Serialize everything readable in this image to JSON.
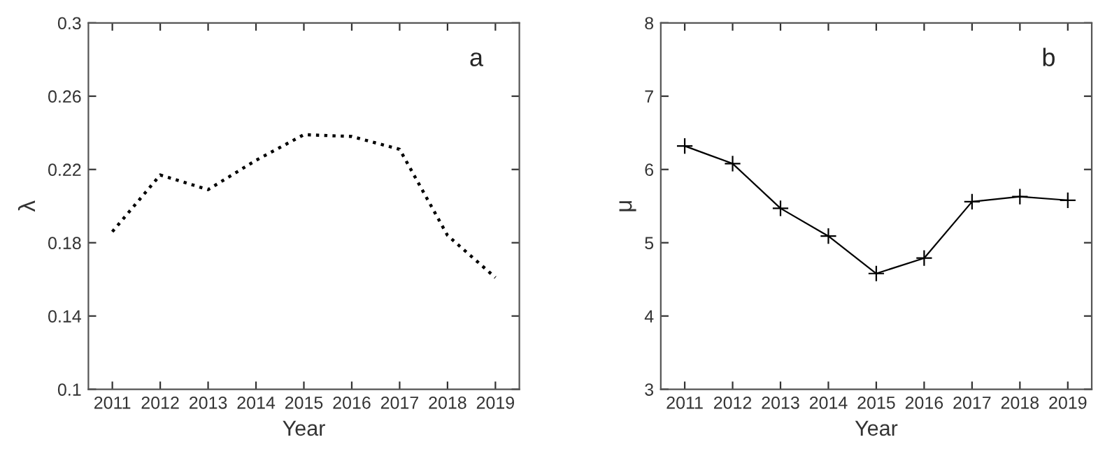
{
  "chart_data": [
    {
      "type": "line",
      "xlabel": "Year",
      "ylabel": "λ",
      "categories": [
        "2011",
        "2012",
        "2013",
        "2014",
        "2015",
        "2016",
        "2017",
        "2018",
        "2019"
      ],
      "series": [
        {
          "color": "#000000",
          "values": [
            0.186,
            0.217,
            0.209,
            0.225,
            0.239,
            0.238,
            0.231,
            0.184,
            0.161
          ]
        }
      ],
      "ylim": [
        0.1,
        0.3
      ],
      "yticks": [
        0.1,
        0.14,
        0.18,
        0.22,
        0.26,
        0.3
      ],
      "line_style": "dotted",
      "marker": "none",
      "grid": false,
      "annotations": [
        "a"
      ]
    },
    {
      "type": "line",
      "xlabel": "Year",
      "ylabel": "μ",
      "categories": [
        "2011",
        "2012",
        "2013",
        "2014",
        "2015",
        "2016",
        "2017",
        "2018",
        "2019"
      ],
      "series": [
        {
          "color": "#000000",
          "values": [
            6.32,
            6.08,
            5.47,
            5.09,
            4.58,
            4.79,
            5.56,
            5.63,
            5.58
          ]
        }
      ],
      "ylim": [
        3,
        8
      ],
      "yticks": [
        3,
        4,
        5,
        6,
        7,
        8
      ],
      "line_style": "solid",
      "marker": "cross",
      "grid": false,
      "annotations": [
        "b"
      ]
    }
  ]
}
